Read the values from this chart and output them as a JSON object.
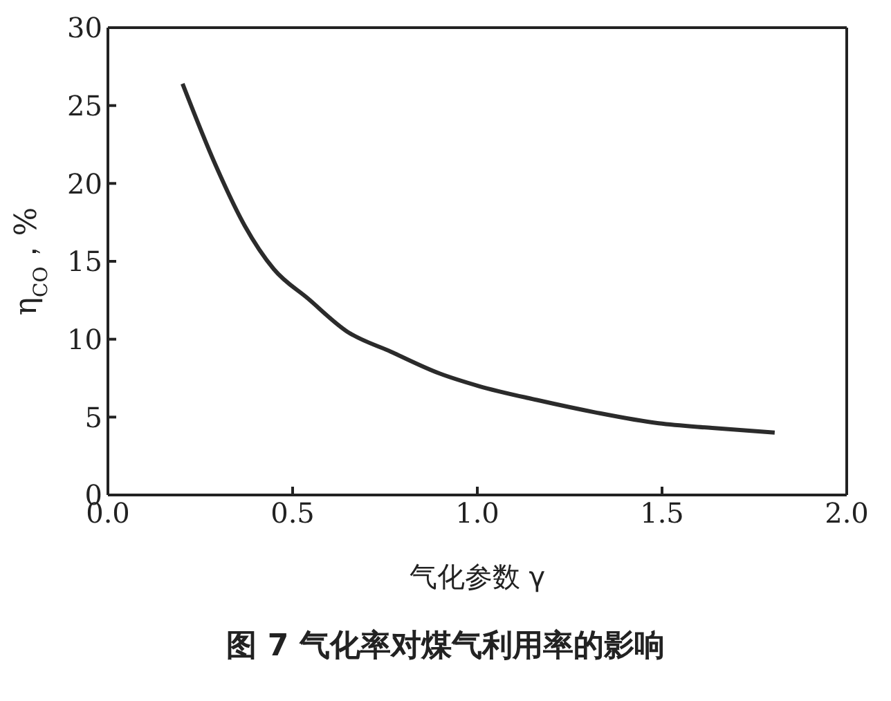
{
  "chart_data": {
    "type": "line",
    "title": "图 7  气化率对煤气利用率的影响",
    "xlabel": "气化参数 γ",
    "ylabel": "η$_{CO}$，%",
    "xlim": [
      0,
      2
    ],
    "xticks": [
      {
        "value": 0,
        "label": "0.0"
      },
      {
        "value": 0.5,
        "label": "0.5"
      },
      {
        "value": 1,
        "label": "1.0"
      },
      {
        "value": 1.5,
        "label": "1.5"
      },
      {
        "value": 2,
        "label": "2.0"
      }
    ],
    "ylim": [
      0,
      30
    ],
    "yticks": [
      0,
      5,
      10,
      15,
      20,
      25,
      30
    ],
    "grid": false,
    "legend": false,
    "marker": "none",
    "line_style": "solid",
    "series": [
      {
        "color": "#2b2b2b",
        "x": [
          0.202,
          0.291,
          0.37,
          0.449,
          0.542,
          0.647,
          0.766,
          0.898,
          1.003,
          1.161,
          1.32,
          1.491,
          1.636,
          1.805
        ],
        "values": [
          26.4,
          21.2,
          17.3,
          14.5,
          12.6,
          10.5,
          9.2,
          7.8,
          7.0,
          6.1,
          5.3,
          4.6,
          4.3,
          4.0
        ]
      }
    ]
  }
}
